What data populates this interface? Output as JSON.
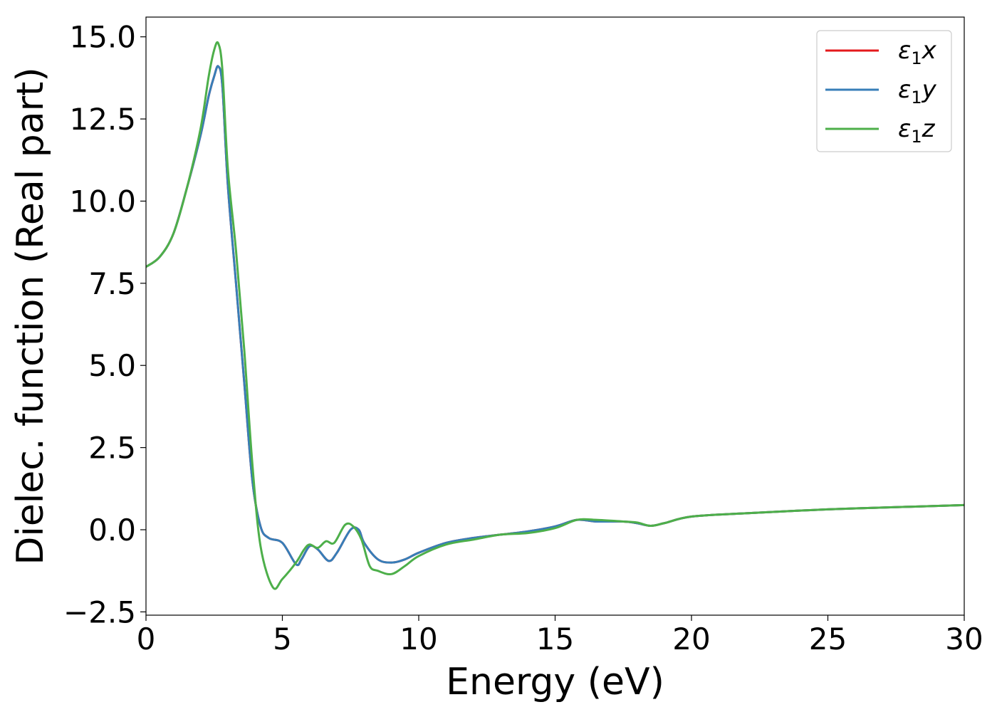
{
  "chart_data": {
    "type": "line",
    "title": "",
    "xlabel": "Energy (eV)",
    "ylabel": "Dielec. function (Real part)",
    "xlim": [
      0,
      30
    ],
    "ylim": [
      -2.6,
      15.6
    ],
    "xticks": [
      0,
      5,
      10,
      15,
      20,
      25,
      30
    ],
    "yticks": [
      -2.5,
      0.0,
      2.5,
      5.0,
      7.5,
      10.0,
      12.5,
      15.0
    ],
    "ytick_labels": [
      "−2.5",
      "0.0",
      "2.5",
      "5.0",
      "7.5",
      "10.0",
      "12.5",
      "15.0"
    ],
    "grid": false,
    "legend_position": "top-right",
    "series": [
      {
        "name": "ε1x",
        "symbol": "ε",
        "subscript": "1",
        "axis": "x",
        "color": "#e41a1c",
        "x": [
          0,
          0.5,
          1.0,
          1.5,
          2.0,
          2.3,
          2.5,
          2.65,
          2.8,
          3.0,
          3.3,
          3.6,
          3.9,
          4.2,
          4.5,
          5.0,
          5.5,
          5.7,
          6.0,
          6.3,
          6.7,
          7.0,
          7.5,
          7.8,
          8.0,
          8.5,
          9.0,
          9.5,
          10.0,
          11.0,
          12.0,
          13.0,
          14.0,
          15.0,
          15.8,
          16.5,
          17.5,
          18.0,
          18.5,
          19.0,
          20.0,
          22.0,
          25.0,
          28.0,
          30.0
        ],
        "y": [
          8.0,
          8.3,
          9.0,
          10.4,
          12.0,
          13.2,
          13.8,
          14.1,
          13.5,
          10.5,
          7.5,
          4.5,
          1.5,
          0.1,
          -0.25,
          -0.4,
          -1.05,
          -0.9,
          -0.5,
          -0.6,
          -0.95,
          -0.7,
          0.0,
          0.0,
          -0.4,
          -0.9,
          -1.0,
          -0.9,
          -0.7,
          -0.4,
          -0.25,
          -0.15,
          -0.05,
          0.1,
          0.3,
          0.25,
          0.25,
          0.2,
          0.12,
          0.2,
          0.4,
          0.5,
          0.62,
          0.7,
          0.75
        ]
      },
      {
        "name": "ε1y",
        "symbol": "ε",
        "subscript": "1",
        "axis": "y",
        "color": "#377eb8",
        "x": [
          0,
          0.5,
          1.0,
          1.5,
          2.0,
          2.3,
          2.5,
          2.65,
          2.8,
          3.0,
          3.3,
          3.6,
          3.9,
          4.2,
          4.5,
          5.0,
          5.5,
          5.7,
          6.0,
          6.3,
          6.7,
          7.0,
          7.5,
          7.8,
          8.0,
          8.5,
          9.0,
          9.5,
          10.0,
          11.0,
          12.0,
          13.0,
          14.0,
          15.0,
          15.8,
          16.5,
          17.5,
          18.0,
          18.5,
          19.0,
          20.0,
          22.0,
          25.0,
          28.0,
          30.0
        ],
        "y": [
          8.0,
          8.3,
          9.0,
          10.4,
          12.0,
          13.2,
          13.8,
          14.1,
          13.5,
          10.5,
          7.5,
          4.5,
          1.5,
          0.1,
          -0.25,
          -0.4,
          -1.05,
          -0.9,
          -0.5,
          -0.6,
          -0.95,
          -0.7,
          0.0,
          0.0,
          -0.4,
          -0.9,
          -1.0,
          -0.9,
          -0.7,
          -0.4,
          -0.25,
          -0.15,
          -0.05,
          0.1,
          0.3,
          0.25,
          0.25,
          0.2,
          0.12,
          0.2,
          0.4,
          0.5,
          0.62,
          0.7,
          0.75
        ]
      },
      {
        "name": "ε1z",
        "symbol": "ε",
        "subscript": "1",
        "axis": "z",
        "color": "#4daf4a",
        "x": [
          0,
          0.5,
          1.0,
          1.5,
          2.0,
          2.3,
          2.5,
          2.65,
          2.8,
          3.0,
          3.3,
          3.6,
          3.9,
          4.2,
          4.65,
          5.0,
          5.5,
          5.8,
          6.0,
          6.3,
          6.6,
          6.9,
          7.3,
          7.6,
          7.9,
          8.2,
          8.5,
          9.0,
          9.5,
          10.0,
          11.0,
          12.0,
          13.0,
          14.0,
          15.0,
          15.8,
          16.5,
          17.5,
          18.0,
          18.5,
          19.0,
          20.0,
          22.0,
          25.0,
          28.0,
          30.0
        ],
        "y": [
          8.0,
          8.3,
          9.0,
          10.4,
          12.2,
          13.8,
          14.6,
          14.8,
          14.0,
          11.0,
          8.5,
          5.5,
          2.0,
          -0.5,
          -1.75,
          -1.5,
          -1.0,
          -0.6,
          -0.45,
          -0.55,
          -0.35,
          -0.4,
          0.15,
          0.1,
          -0.3,
          -1.1,
          -1.25,
          -1.35,
          -1.1,
          -0.8,
          -0.45,
          -0.3,
          -0.15,
          -0.1,
          0.05,
          0.3,
          0.3,
          0.25,
          0.22,
          0.12,
          0.2,
          0.4,
          0.5,
          0.62,
          0.7,
          0.75
        ]
      }
    ]
  }
}
